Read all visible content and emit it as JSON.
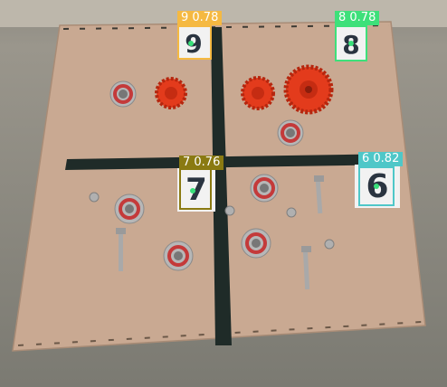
{
  "image": {
    "description_free": true
  },
  "detections": [
    {
      "id": "det-9",
      "digit": "9",
      "label": "9 0.78",
      "color": "#f5b942"
    },
    {
      "id": "det-8",
      "digit": "8",
      "label": "8 0.78",
      "color": "#3ee07a"
    },
    {
      "id": "det-7",
      "digit": "7",
      "label": "7 0.76",
      "color": "#8a7a12"
    },
    {
      "id": "det-6",
      "digit": "6",
      "label": "6 0.82",
      "color": "#4fc7c8"
    }
  ],
  "colors": {
    "board": "#c9a992",
    "tape": "#1f2b28",
    "gear": "#e33b1c",
    "bearing_ring": "#c43a3a",
    "bearing_metal": "#b7b7b7",
    "bolt": "#a9a9a9"
  }
}
